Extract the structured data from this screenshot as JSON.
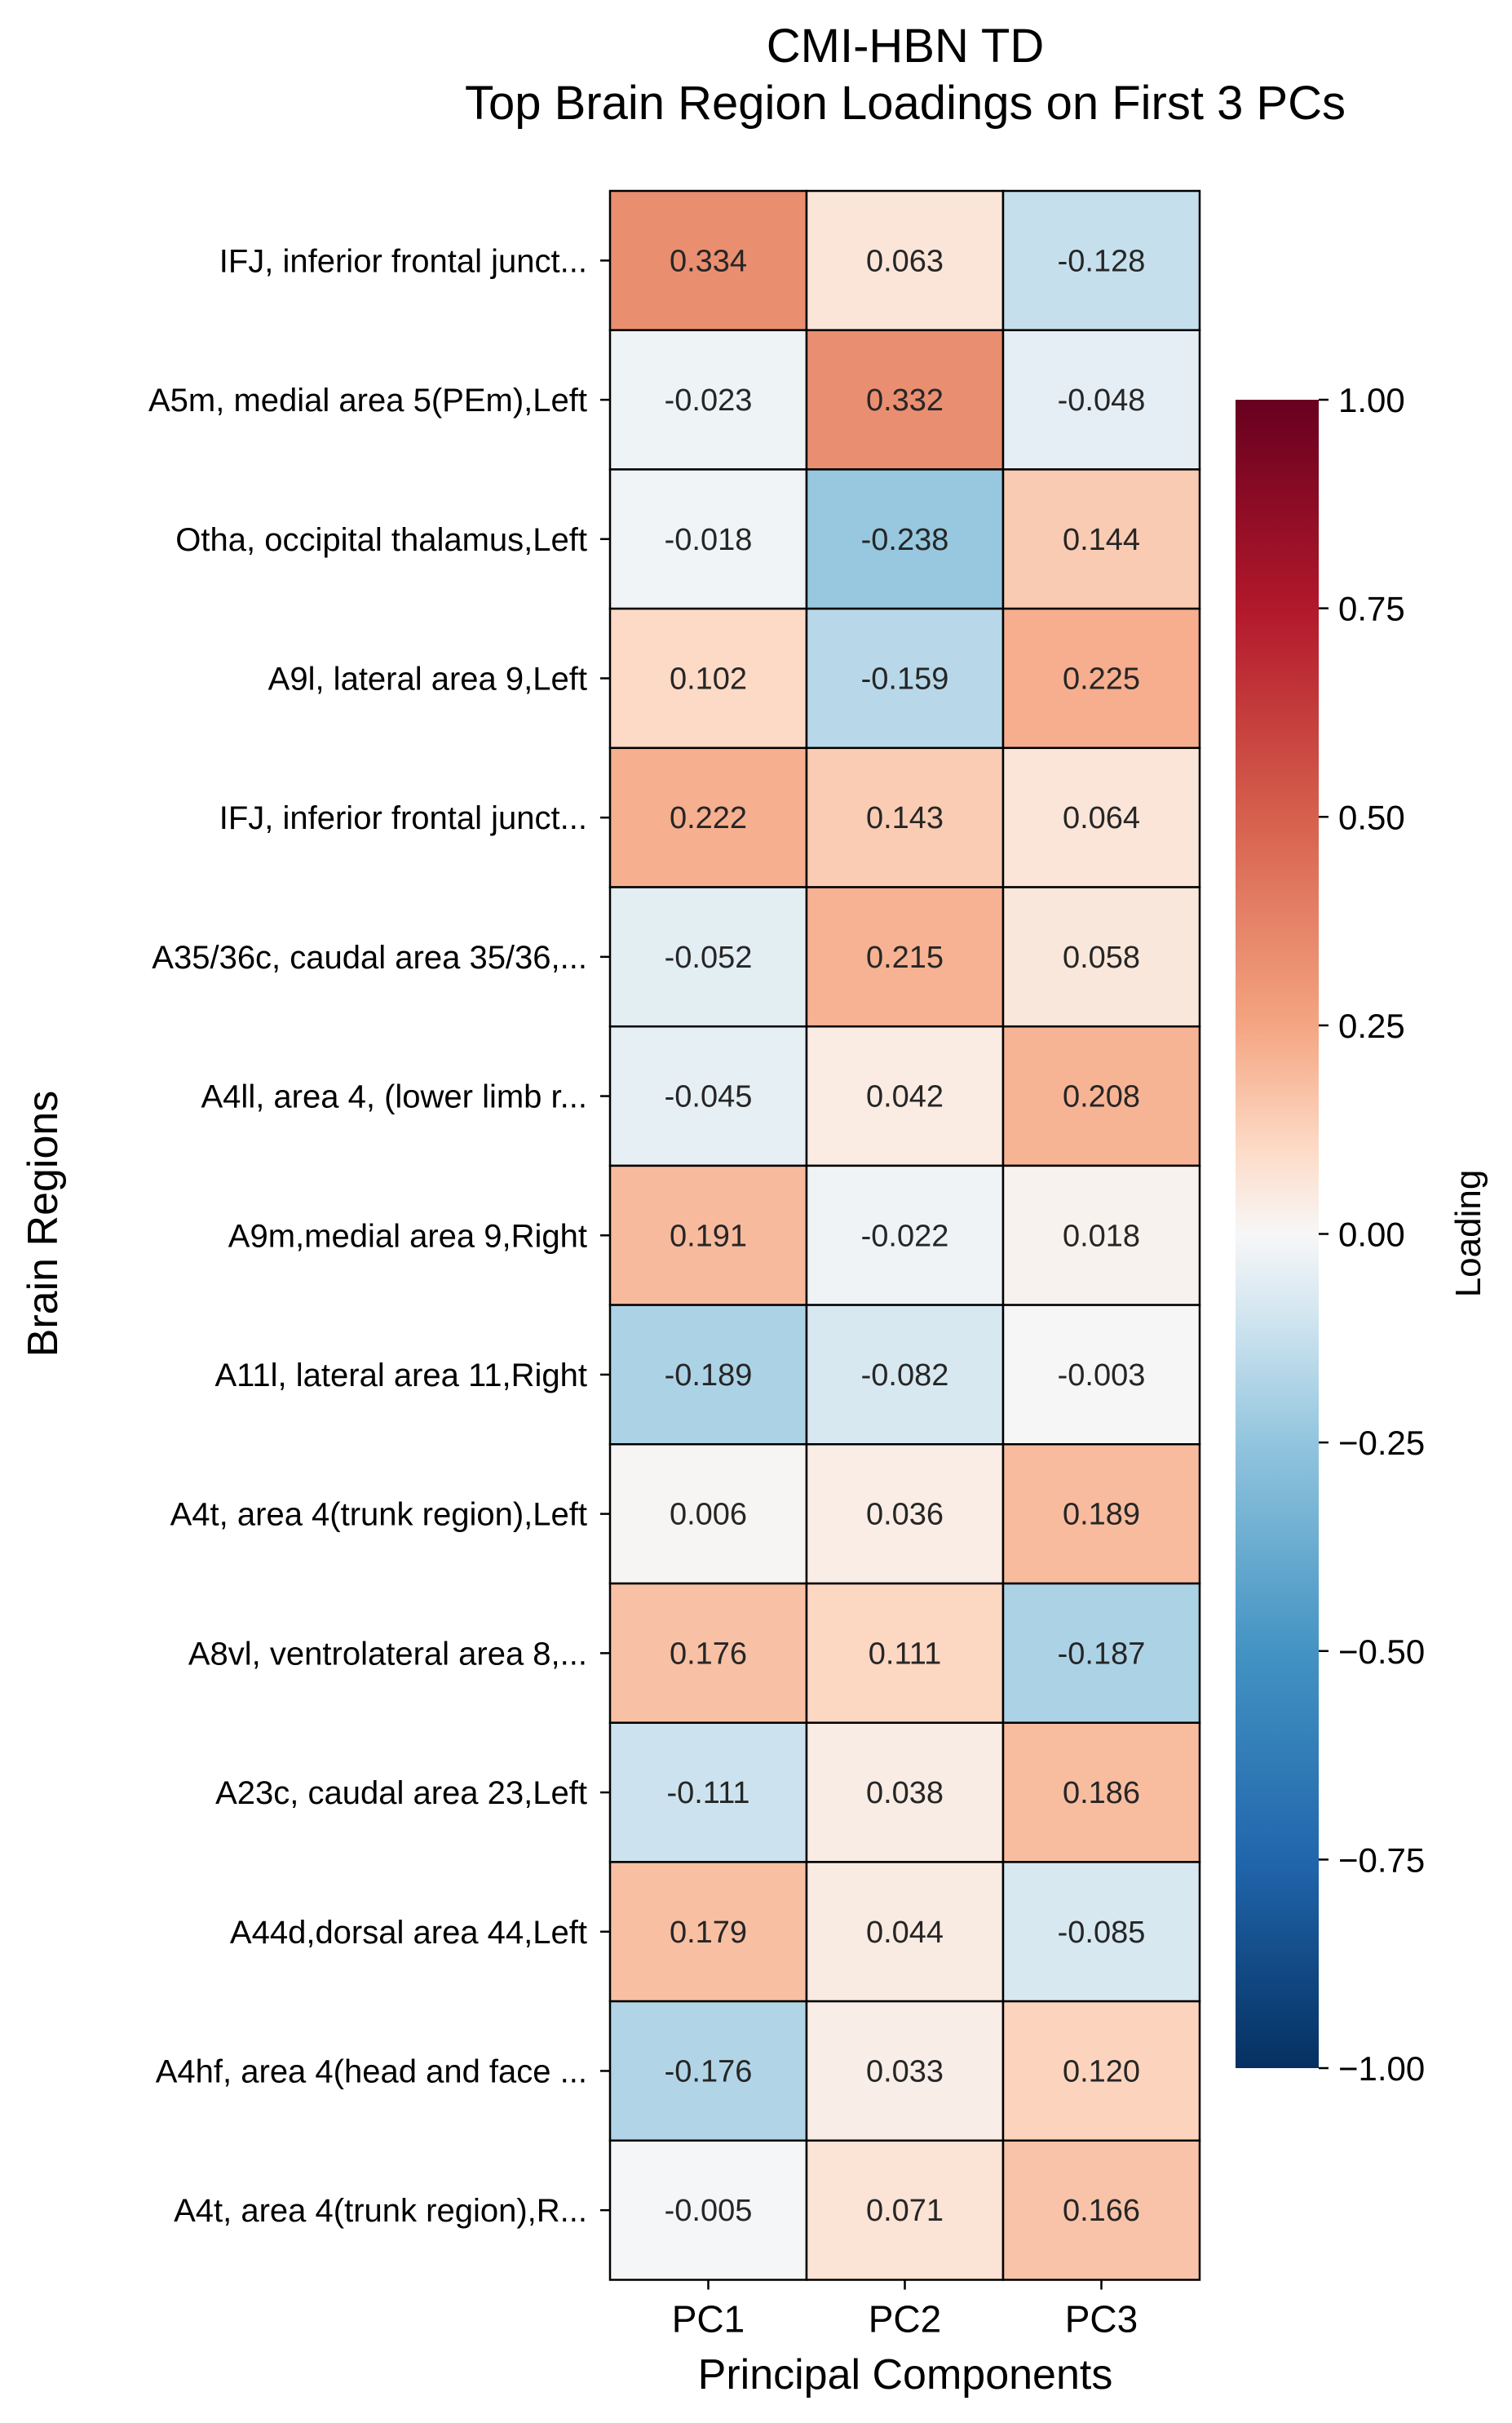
{
  "chart_data": {
    "type": "heatmap",
    "title": [
      "CMI-HBN TD",
      "Top Brain Region Loadings on First 3 PCs"
    ],
    "xlabel": "Principal Components",
    "ylabel": "Brain Regions",
    "colorbar_label": "Loading",
    "columns": [
      "PC1",
      "PC2",
      "PC3"
    ],
    "rows": [
      "IFJ, inferior frontal junct...",
      "A5m, medial area 5(PEm),Left",
      "Otha, occipital thalamus,Left",
      "A9l, lateral area 9,Left",
      "IFJ, inferior frontal junct...",
      "A35/36c, caudal area 35/36,...",
      "A4ll, area 4, (lower limb r...",
      "A9m,medial area 9,Right",
      "A11l, lateral area 11,Right",
      "A4t, area 4(trunk region),Left",
      "A8vl, ventrolateral area 8,...",
      "A23c, caudal area 23,Left",
      "A44d,dorsal area 44,Left",
      "A4hf, area 4(head and face ...",
      "A4t, area 4(trunk region),R..."
    ],
    "values": [
      [
        0.334,
        0.063,
        -0.128
      ],
      [
        -0.023,
        0.332,
        -0.048
      ],
      [
        -0.018,
        -0.238,
        0.144
      ],
      [
        0.102,
        -0.159,
        0.225
      ],
      [
        0.222,
        0.143,
        0.064
      ],
      [
        -0.052,
        0.215,
        0.058
      ],
      [
        -0.045,
        0.042,
        0.208
      ],
      [
        0.191,
        -0.022,
        0.018
      ],
      [
        -0.189,
        -0.082,
        -0.003
      ],
      [
        0.006,
        0.036,
        0.189
      ],
      [
        0.176,
        0.111,
        -0.187
      ],
      [
        -0.111,
        0.038,
        0.186
      ],
      [
        0.179,
        0.044,
        -0.085
      ],
      [
        -0.176,
        0.033,
        0.12
      ],
      [
        -0.005,
        0.071,
        0.166
      ]
    ],
    "colormap": "RdBu_r",
    "vmin": -1.0,
    "vmax": 1.0,
    "colorbar_ticks": [
      1.0,
      0.75,
      0.5,
      0.25,
      0.0,
      -0.25,
      -0.5,
      -0.75,
      -1.0
    ],
    "colorbar_tick_labels": [
      "1.00",
      "0.75",
      "0.50",
      "0.25",
      "0.00",
      "−0.25",
      "−0.50",
      "−0.75",
      "−1.00"
    ]
  }
}
